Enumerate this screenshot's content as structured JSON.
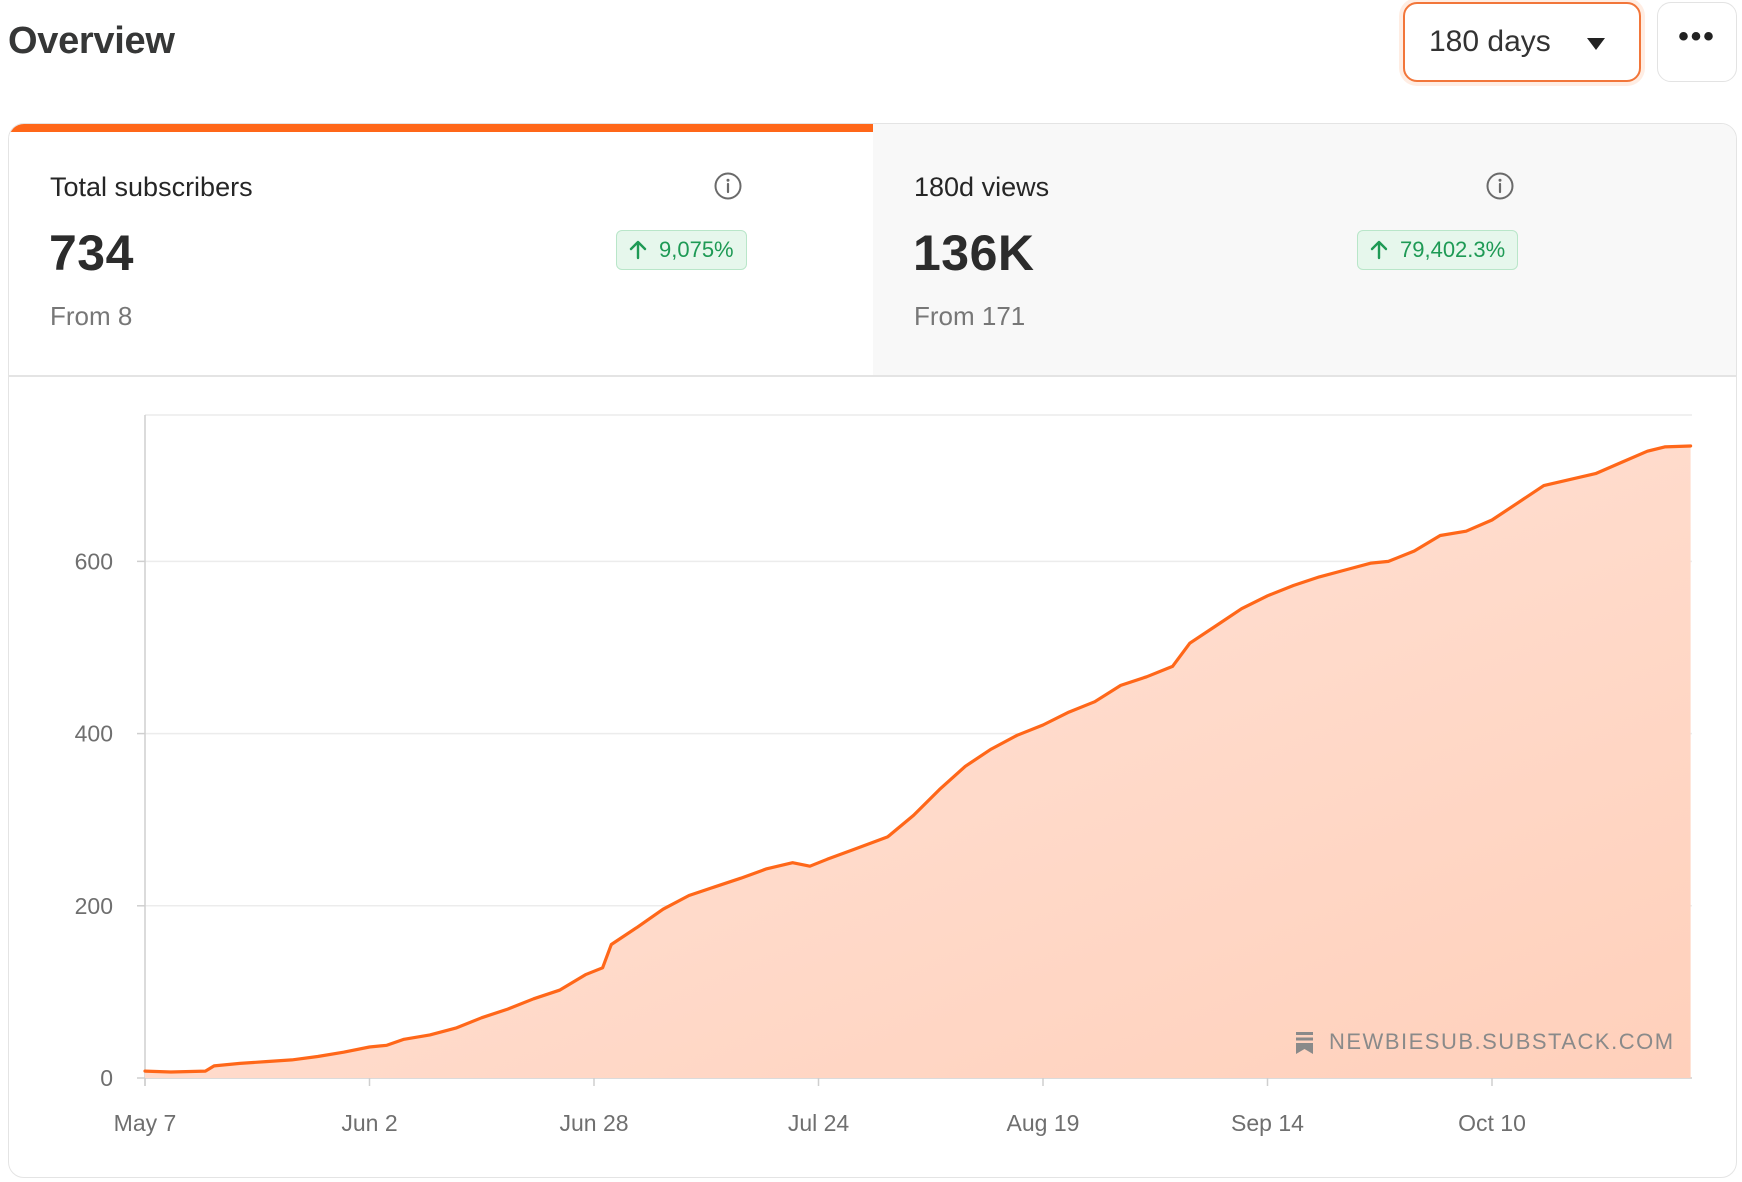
{
  "header": {
    "title": "Overview",
    "range_select": "180 days",
    "more_label": "•••"
  },
  "tabs": [
    {
      "label": "Total subscribers",
      "value": "734",
      "change": "9,075%",
      "from": "From 8",
      "active": true
    },
    {
      "label": "180d views",
      "value": "136K",
      "change": "79,402.3%",
      "from": "From 171",
      "active": false
    }
  ],
  "colors": {
    "accent": "#ff6719",
    "area_fill": "#ffd5c2",
    "positive": "#1e9a55",
    "positive_bg": "#e6f7ec"
  },
  "icons": {
    "info": "info-icon",
    "up_arrow": "arrow-up-icon",
    "dropdown": "caret-down-icon",
    "watermark": "substack-logo-icon"
  },
  "watermark": "NEWBIESUB.SUBSTACK.COM",
  "chart_data": {
    "type": "area",
    "title": "",
    "xlabel": "",
    "ylabel": "",
    "ylim": [
      0,
      770
    ],
    "yticks": [
      0,
      200,
      400,
      600
    ],
    "xticks": [
      "May 7",
      "Jun 2",
      "Jun 28",
      "Jul 24",
      "Aug 19",
      "Sep 14",
      "Oct 10"
    ],
    "grid": true,
    "series": [
      {
        "points": [
          [
            "May 7",
            8
          ],
          [
            "May 10",
            7
          ],
          [
            "May 14",
            8
          ],
          [
            "May 15",
            14
          ],
          [
            "May 18",
            17
          ],
          [
            "May 21",
            19
          ],
          [
            "May 24",
            21
          ],
          [
            "May 27",
            25
          ],
          [
            "May 30",
            30
          ],
          [
            "Jun 2",
            36
          ],
          [
            "Jun 4",
            38
          ],
          [
            "Jun 6",
            45
          ],
          [
            "Jun 9",
            50
          ],
          [
            "Jun 12",
            58
          ],
          [
            "Jun 15",
            70
          ],
          [
            "Jun 18",
            80
          ],
          [
            "Jun 21",
            92
          ],
          [
            "Jun 24",
            102
          ],
          [
            "Jun 27",
            120
          ],
          [
            "Jun 29",
            128
          ],
          [
            "Jun 30",
            155
          ],
          [
            "Jul 3",
            175
          ],
          [
            "Jul 6",
            196
          ],
          [
            "Jul 9",
            212
          ],
          [
            "Jul 12",
            222
          ],
          [
            "Jul 15",
            232
          ],
          [
            "Jul 18",
            243
          ],
          [
            "Jul 21",
            250
          ],
          [
            "Jul 23",
            246
          ],
          [
            "Jul 25",
            254
          ],
          [
            "Jul 28",
            265
          ],
          [
            "Aug 1",
            280
          ],
          [
            "Aug 4",
            305
          ],
          [
            "Aug 7",
            335
          ],
          [
            "Aug 10",
            362
          ],
          [
            "Aug 13",
            382
          ],
          [
            "Aug 16",
            398
          ],
          [
            "Aug 19",
            410
          ],
          [
            "Aug 22",
            425
          ],
          [
            "Aug 25",
            437
          ],
          [
            "Aug 28",
            456
          ],
          [
            "Aug 31",
            466
          ],
          [
            "Sep 3",
            478
          ],
          [
            "Sep 5",
            505
          ],
          [
            "Sep 8",
            525
          ],
          [
            "Sep 11",
            545
          ],
          [
            "Sep 14",
            560
          ],
          [
            "Sep 17",
            572
          ],
          [
            "Sep 20",
            582
          ],
          [
            "Sep 23",
            590
          ],
          [
            "Sep 26",
            598
          ],
          [
            "Sep 28",
            600
          ],
          [
            "Oct 1",
            612
          ],
          [
            "Oct 4",
            630
          ],
          [
            "Oct 7",
            635
          ],
          [
            "Oct 10",
            648
          ],
          [
            "Oct 13",
            668
          ],
          [
            "Oct 16",
            688
          ],
          [
            "Oct 19",
            695
          ],
          [
            "Oct 22",
            702
          ],
          [
            "Oct 25",
            715
          ],
          [
            "Oct 28",
            728
          ],
          [
            "Oct 30",
            733
          ],
          [
            "Nov 2",
            734
          ]
        ]
      }
    ]
  }
}
